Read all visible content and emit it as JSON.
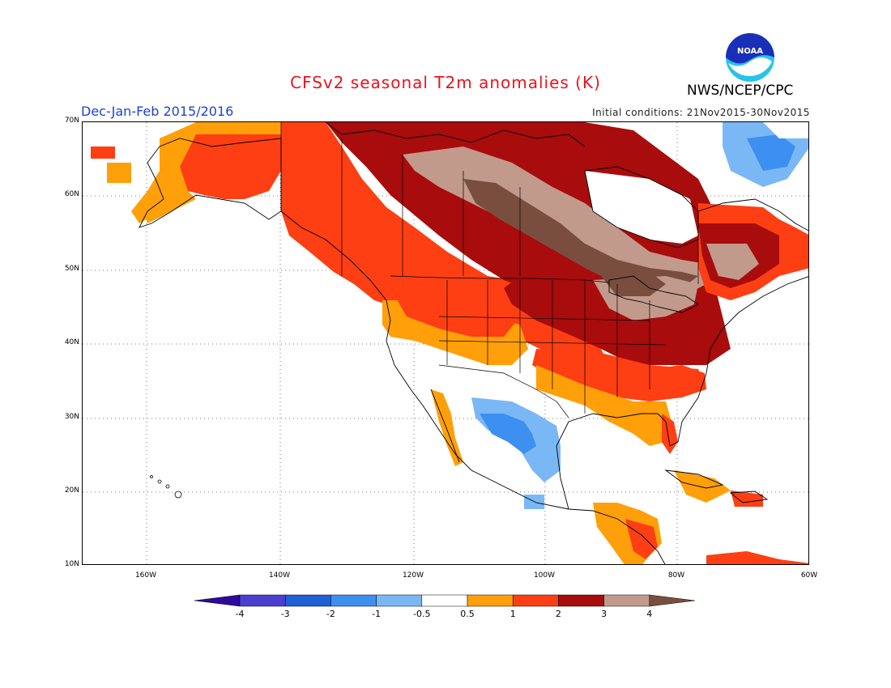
{
  "title": "CFSv2 seasonal T2m anomalies (K)",
  "period": "Dec-Jan-Feb 2015/2016",
  "initial_conditions": "Initial conditions: 21Nov2015-30Nov2015",
  "agency": "NWS/NCEP/CPC",
  "logo_text": "NOAA",
  "lat_labels": [
    "70N",
    "60N",
    "50N",
    "40N",
    "30N",
    "20N",
    "10N"
  ],
  "lon_labels": [
    "160W",
    "140W",
    "120W",
    "100W",
    "80W",
    "60W"
  ],
  "legend": {
    "labels": [
      "-4",
      "-3",
      "-2",
      "-1",
      "-0.5",
      "0.5",
      "1",
      "2",
      "3",
      "4"
    ],
    "colors": [
      "#2e0a9a",
      "#4a3fd0",
      "#1f5fd8",
      "#3d8ff0",
      "#7ab8f5",
      "#ffffff",
      "#ff9f0a",
      "#fd3f13",
      "#a80c0c",
      "#c29a8c",
      "#7a4e3e"
    ]
  },
  "colors": {
    "title": "#e8141e",
    "period": "#1f3fd6",
    "coast": "#000000"
  }
}
